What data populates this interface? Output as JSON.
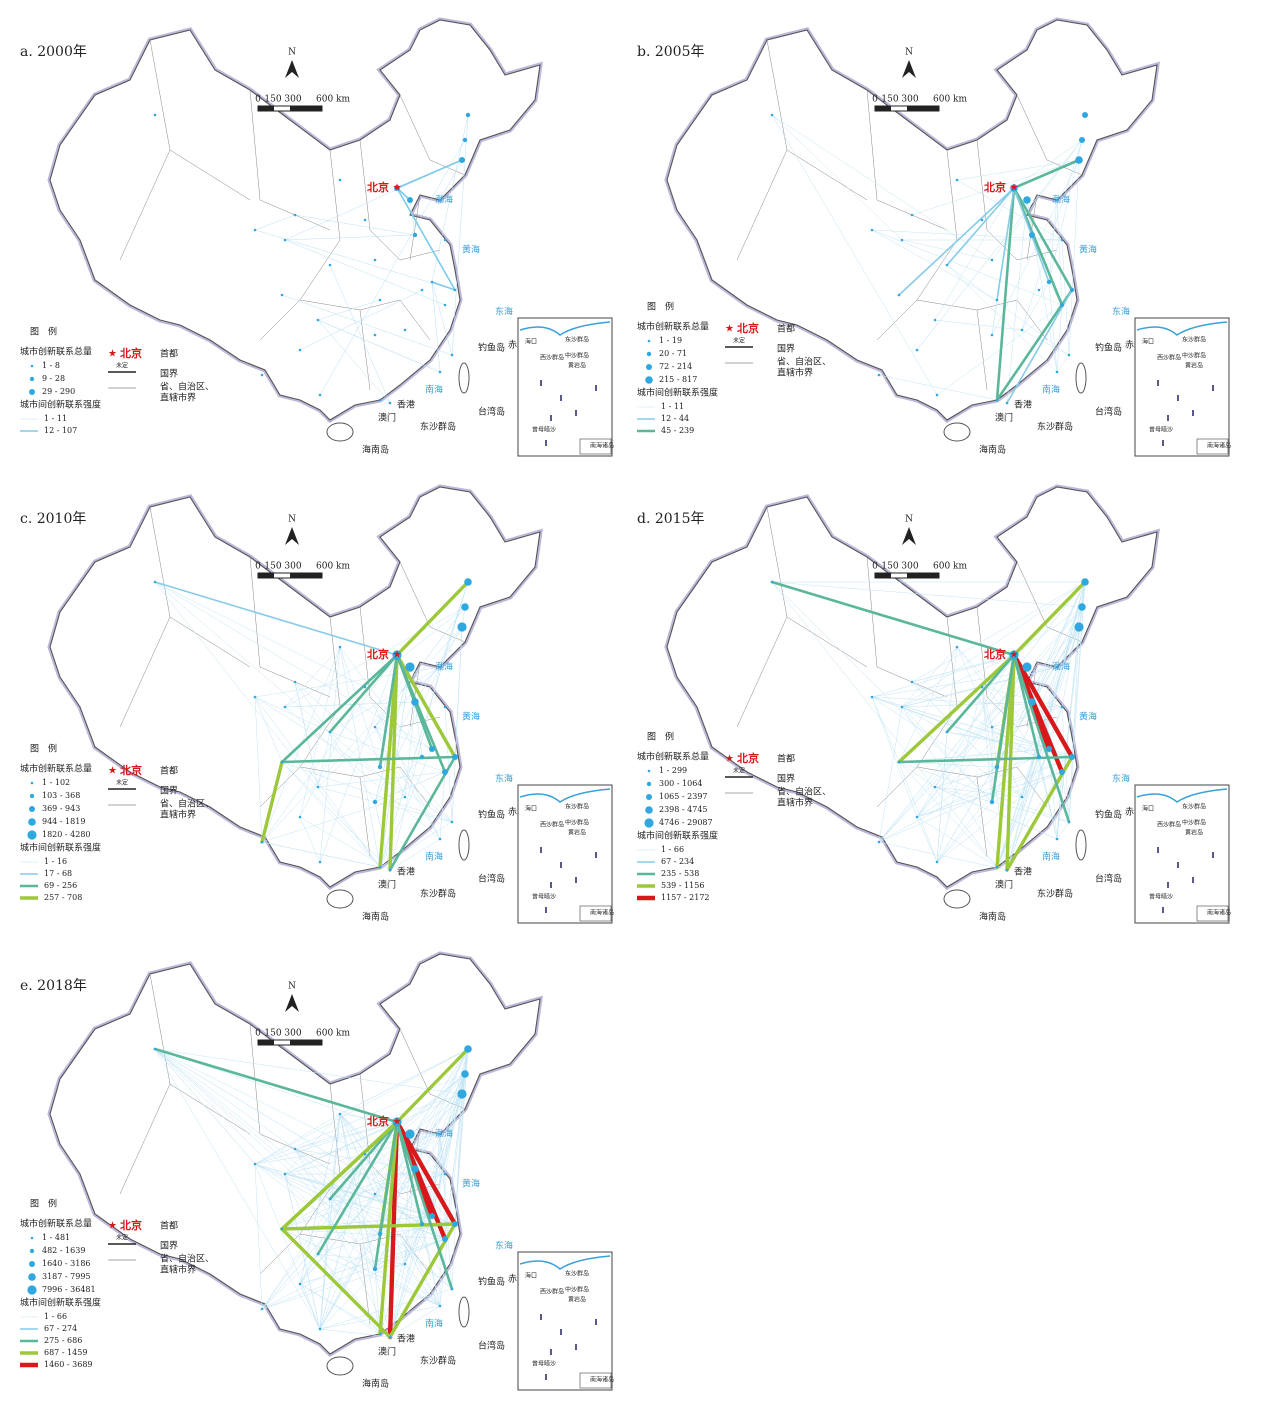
{
  "panels": [
    {
      "title": "a. 2000年",
      "node_classes": [
        "1 - 8",
        "9 - 28",
        "29 - 290"
      ],
      "link_classes": [
        {
          "label": "1 - 11",
          "color": "#b9e0f4"
        },
        {
          "label": "12 - 107",
          "color": "#7ccbe8"
        }
      ]
    },
    {
      "title": "b. 2005年",
      "node_classes": [
        "1 - 19",
        "20 - 71",
        "72 - 214",
        "215 - 817"
      ],
      "link_classes": [
        {
          "label": "1 - 11",
          "color": "#c4e5f5"
        },
        {
          "label": "12 - 44",
          "color": "#86cbe8"
        },
        {
          "label": "45 - 239",
          "color": "#5bb79a"
        }
      ]
    },
    {
      "title": "c. 2010年",
      "node_classes": [
        "1 - 102",
        "103 - 368",
        "369 - 943",
        "944 - 1819",
        "1820 - 4280"
      ],
      "link_classes": [
        {
          "label": "1 - 16",
          "color": "#c4e5f5"
        },
        {
          "label": "17 - 68",
          "color": "#86cbe8"
        },
        {
          "label": "69 - 256",
          "color": "#5bb79a"
        },
        {
          "label": "257 - 708",
          "color": "#9cc83a"
        }
      ]
    },
    {
      "title": "d. 2015年",
      "node_classes": [
        "1 - 299",
        "300 - 1064",
        "1065 - 2397",
        "2398 - 4745",
        "4746 - 29087"
      ],
      "link_classes": [
        {
          "label": "1 - 66",
          "color": "#c4e5f5"
        },
        {
          "label": "67 - 234",
          "color": "#86cbe8"
        },
        {
          "label": "235 - 538",
          "color": "#5bb79a"
        },
        {
          "label": "539 - 1156",
          "color": "#9cc83a"
        },
        {
          "label": "1157 - 2172",
          "color": "#d7191c"
        }
      ]
    },
    {
      "title": "e. 2018年",
      "node_classes": [
        "1 - 481",
        "482 - 1639",
        "1640 - 3186",
        "3187 - 7995",
        "7996 - 36481"
      ],
      "link_classes": [
        {
          "label": "1 - 66",
          "color": "#c4e5f5"
        },
        {
          "label": "67 - 274",
          "color": "#86cbe8"
        },
        {
          "label": "275 - 686",
          "color": "#5bb79a"
        },
        {
          "label": "687 - 1459",
          "color": "#9cc83a"
        },
        {
          "label": "1460 - 3689",
          "color": "#d7191c"
        }
      ]
    }
  ],
  "node_color": "#2fa8e0",
  "legend": {
    "title": "图　例",
    "node_title": "城市创新联系总量",
    "link_title": "城市间创新联系强度",
    "capital": "北京",
    "capital_desc": "首都",
    "undetermined": "未定",
    "border": "国界",
    "province_border": [
      "省、自治区、",
      "直辖市界"
    ]
  },
  "map": {
    "north": "N",
    "scale_labels": [
      "0",
      "150 300",
      "600 km"
    ],
    "places": {
      "beijing": "北京",
      "hongkong": "香港",
      "macao": "澳门",
      "hainan": "海南岛",
      "taiwan": "台湾岛",
      "dongsha": "东沙群岛",
      "diaoyu": "钓鱼岛",
      "chiwei": "赤尾屿"
    },
    "seas": {
      "bohai": "渤海",
      "huanghai": "黄海",
      "donghai": "东海",
      "nanhai": "南海"
    },
    "inset_labels": [
      "海口",
      "东沙群岛",
      "西沙群岛",
      "中沙群岛",
      "黄岩岛",
      "曾母暗沙",
      "南海诸岛"
    ]
  }
}
